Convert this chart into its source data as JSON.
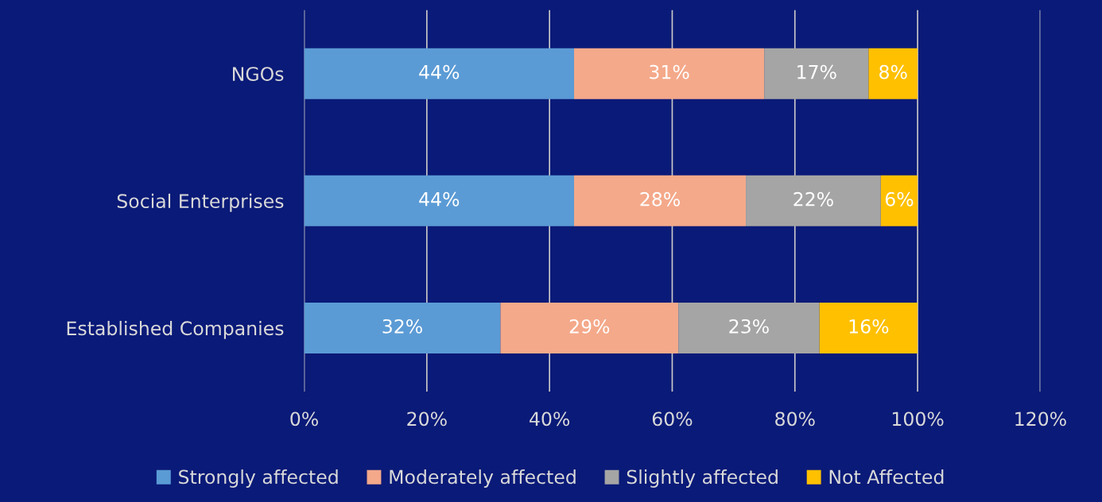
{
  "chart_data": {
    "type": "bar",
    "orientation": "horizontal",
    "stacked": true,
    "categories": [
      "NGOs",
      "Social Enterprises",
      "Established Companies"
    ],
    "series": [
      {
        "name": "Strongly affected",
        "color": "#5b9bd5",
        "values": [
          44,
          44,
          32
        ],
        "value_labels": [
          "44%",
          "44%",
          "32%"
        ]
      },
      {
        "name": "Moderately affected",
        "color": "#f4a98a",
        "values": [
          31,
          28,
          29
        ],
        "value_labels": [
          "31%",
          "28%",
          "29%"
        ]
      },
      {
        "name": "Slightly affected",
        "color": "#a5a5a5",
        "values": [
          17,
          22,
          23
        ],
        "value_labels": [
          "17%",
          "22%",
          "23%"
        ]
      },
      {
        "name": "Not Affected",
        "color": "#ffc000",
        "values": [
          8,
          6,
          16
        ],
        "value_labels": [
          "8%",
          "6%",
          "16%"
        ]
      }
    ],
    "xlim": [
      0,
      120
    ],
    "xticks": [
      {
        "value": 0,
        "label": "0%"
      },
      {
        "value": 20,
        "label": "20%"
      },
      {
        "value": 40,
        "label": "40%"
      },
      {
        "value": 60,
        "label": "60%"
      },
      {
        "value": 80,
        "label": "80%"
      },
      {
        "value": 100,
        "label": "100%"
      },
      {
        "value": 120,
        "label": "120%"
      }
    ],
    "grid": "x",
    "legend": "bottom"
  }
}
